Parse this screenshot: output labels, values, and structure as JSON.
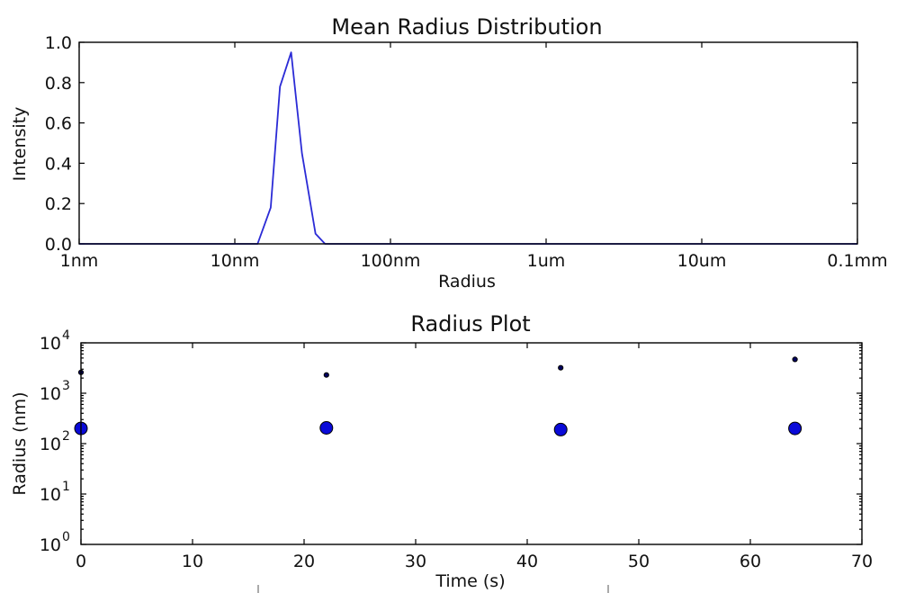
{
  "chart_data": [
    {
      "type": "line",
      "title": "Mean Radius Distribution",
      "xlabel": "Radius",
      "ylabel": "Intensity",
      "x_scale": "log",
      "x_unit": "nm",
      "xlim": [
        1,
        100000
      ],
      "ylim": [
        0,
        1.0
      ],
      "x_ticks": [
        {
          "value": 1,
          "label": "1nm"
        },
        {
          "value": 10,
          "label": "10nm"
        },
        {
          "value": 100,
          "label": "100nm"
        },
        {
          "value": 1000,
          "label": "1um"
        },
        {
          "value": 10000,
          "label": "10um"
        },
        {
          "value": 100000,
          "label": "0.1mm"
        }
      ],
      "y_ticks": [
        {
          "value": 0.0,
          "label": "0.0"
        },
        {
          "value": 0.2,
          "label": "0.2"
        },
        {
          "value": 0.4,
          "label": "0.4"
        },
        {
          "value": 0.6,
          "label": "0.6"
        },
        {
          "value": 0.8,
          "label": "0.8"
        },
        {
          "value": 1.0,
          "label": "1.0"
        }
      ],
      "grid": false,
      "series": [
        {
          "color": "#2b2bd6",
          "x": [
            1,
            14,
            17,
            19.5,
            23,
            27,
            33,
            38,
            100,
            1000,
            1500,
            100000
          ],
          "y": [
            0.0,
            0.0,
            0.18,
            0.78,
            0.95,
            0.45,
            0.05,
            0.0,
            0.0,
            0.0,
            0.0,
            0.0
          ]
        }
      ]
    },
    {
      "type": "scatter",
      "title": "Radius Plot",
      "xlabel": "Time (s)",
      "ylabel": "Radius (nm)",
      "y_scale": "log",
      "xlim": [
        0,
        70
      ],
      "ylim": [
        1,
        10000
      ],
      "x_ticks": [
        {
          "value": 0,
          "label": "0"
        },
        {
          "value": 10,
          "label": "10"
        },
        {
          "value": 20,
          "label": "20"
        },
        {
          "value": 30,
          "label": "30"
        },
        {
          "value": 40,
          "label": "40"
        },
        {
          "value": 50,
          "label": "50"
        },
        {
          "value": 60,
          "label": "60"
        },
        {
          "value": 70,
          "label": "70"
        }
      ],
      "y_ticks": [
        {
          "value": 1,
          "base": "10",
          "exp": "0"
        },
        {
          "value": 10,
          "base": "10",
          "exp": "1"
        },
        {
          "value": 100,
          "base": "10",
          "exp": "2"
        },
        {
          "value": 1000,
          "base": "10",
          "exp": "3"
        },
        {
          "value": 10000,
          "base": "10",
          "exp": "4"
        }
      ],
      "grid": false,
      "series": [
        {
          "color": "#0a0ad8",
          "marker_size": "large",
          "x": [
            0,
            22,
            43,
            64
          ],
          "y": [
            200,
            205,
            190,
            200
          ]
        },
        {
          "color": "#00005e",
          "marker_size": "small",
          "x": [
            0,
            22,
            43,
            64
          ],
          "y": [
            2600,
            2300,
            3200,
            4700
          ]
        }
      ]
    }
  ]
}
